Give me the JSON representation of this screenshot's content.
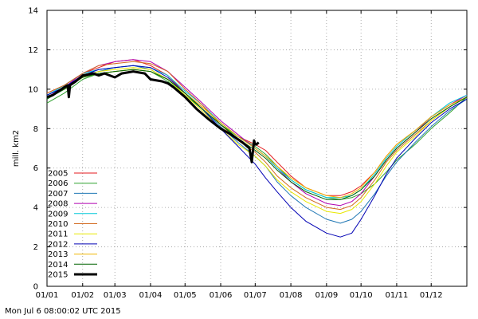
{
  "chart_data": {
    "type": "line",
    "ylabel": "mill. km2",
    "ylim": [
      0,
      14
    ],
    "yticks": [
      "0",
      "2",
      "4",
      "6",
      "8",
      "10",
      "12",
      "14"
    ],
    "xlim": [
      0,
      365
    ],
    "xticks": [
      {
        "label": "01/01",
        "day": 0
      },
      {
        "label": "01/02",
        "day": 31
      },
      {
        "label": "01/03",
        "day": 59
      },
      {
        "label": "01/04",
        "day": 90
      },
      {
        "label": "01/05",
        "day": 120
      },
      {
        "label": "01/06",
        "day": 151
      },
      {
        "label": "01/07",
        "day": 181
      },
      {
        "label": "01/08",
        "day": 212
      },
      {
        "label": "01/09",
        "day": 243
      },
      {
        "label": "01/10",
        "day": 273
      },
      {
        "label": "01/11",
        "day": 304
      },
      {
        "label": "01/12",
        "day": 334
      }
    ],
    "grid": true,
    "legend_position": "bottom-left",
    "series": [
      {
        "name": "2005",
        "color": "#e41a1c",
        "width": 1,
        "x": [
          0,
          15,
          31,
          45,
          59,
          75,
          90,
          105,
          120,
          135,
          151,
          166,
          181,
          190,
          200,
          212,
          225,
          243,
          255,
          265,
          273,
          285,
          295,
          304,
          320,
          334,
          350,
          365
        ],
        "values": [
          9.8,
          10.2,
          10.8,
          11.1,
          11.4,
          11.5,
          11.2,
          10.7,
          9.8,
          9.1,
          8.3,
          7.6,
          7.2,
          6.9,
          6.3,
          5.6,
          5.0,
          4.6,
          4.6,
          4.8,
          5.1,
          5.8,
          6.6,
          7.2,
          7.9,
          8.6,
          9.2,
          9.7
        ]
      },
      {
        "name": "2006",
        "color": "#2ca02c",
        "width": 1,
        "x": [
          0,
          15,
          31,
          45,
          59,
          75,
          90,
          105,
          120,
          135,
          151,
          166,
          181,
          190,
          200,
          212,
          225,
          243,
          255,
          265,
          273,
          285,
          295,
          304,
          320,
          334,
          350,
          365
        ],
        "values": [
          9.3,
          9.8,
          10.5,
          10.8,
          10.9,
          11.0,
          10.9,
          10.4,
          9.7,
          9.0,
          8.2,
          7.6,
          7.1,
          6.7,
          6.1,
          5.4,
          4.9,
          4.5,
          4.4,
          4.5,
          4.7,
          5.2,
          5.8,
          6.4,
          7.2,
          8.0,
          8.8,
          9.6
        ]
      },
      {
        "name": "2007",
        "color": "#1f77b4",
        "width": 1,
        "x": [
          0,
          15,
          31,
          45,
          59,
          75,
          90,
          105,
          120,
          135,
          151,
          166,
          181,
          190,
          200,
          212,
          225,
          243,
          255,
          265,
          273,
          285,
          295,
          304,
          320,
          334,
          350,
          365
        ],
        "values": [
          9.7,
          10.1,
          10.7,
          10.9,
          11.1,
          11.2,
          11.0,
          10.5,
          9.8,
          9.0,
          8.1,
          7.3,
          6.6,
          6.1,
          5.3,
          4.6,
          4.0,
          3.4,
          3.2,
          3.4,
          3.8,
          4.7,
          5.6,
          6.3,
          7.3,
          8.1,
          8.9,
          9.5
        ]
      },
      {
        "name": "2008",
        "color": "#b000b0",
        "width": 1,
        "x": [
          0,
          15,
          31,
          45,
          59,
          75,
          90,
          105,
          120,
          135,
          151,
          166,
          181,
          190,
          200,
          212,
          225,
          243,
          255,
          265,
          273,
          285,
          295,
          304,
          320,
          334,
          350,
          365
        ],
        "values": [
          9.6,
          10.1,
          10.8,
          11.2,
          11.4,
          11.5,
          11.4,
          10.9,
          10.1,
          9.3,
          8.4,
          7.7,
          7.0,
          6.6,
          6.0,
          5.3,
          4.7,
          4.2,
          4.1,
          4.3,
          4.7,
          5.6,
          6.4,
          7.0,
          7.8,
          8.6,
          9.2,
          9.7
        ]
      },
      {
        "name": "2009",
        "color": "#00c8d8",
        "width": 1,
        "x": [
          0,
          15,
          31,
          45,
          59,
          75,
          90,
          105,
          120,
          135,
          151,
          166,
          181,
          190,
          200,
          212,
          225,
          243,
          255,
          265,
          273,
          285,
          295,
          304,
          320,
          334,
          350,
          365
        ],
        "values": [
          9.7,
          10.2,
          10.8,
          11.0,
          11.1,
          11.2,
          11.1,
          10.7,
          9.9,
          9.2,
          8.3,
          7.6,
          7.0,
          6.6,
          6.0,
          5.4,
          4.9,
          4.5,
          4.5,
          4.6,
          4.9,
          5.7,
          6.5,
          7.1,
          7.9,
          8.6,
          9.3,
          9.7
        ]
      },
      {
        "name": "2010",
        "color": "#d2691e",
        "width": 1,
        "x": [
          0,
          15,
          31,
          45,
          59,
          75,
          90,
          105,
          120,
          135,
          151,
          166,
          181,
          190,
          200,
          212,
          225,
          243,
          255,
          265,
          273,
          285,
          295,
          304,
          320,
          334,
          350,
          365
        ],
        "values": [
          9.8,
          10.2,
          10.8,
          11.2,
          11.3,
          11.4,
          11.3,
          10.9,
          10.0,
          9.2,
          8.2,
          7.4,
          6.8,
          6.3,
          5.6,
          5.0,
          4.5,
          4.0,
          3.9,
          4.1,
          4.5,
          5.4,
          6.3,
          6.9,
          7.7,
          8.4,
          9.1,
          9.6
        ]
      },
      {
        "name": "2011",
        "color": "#e8e800",
        "width": 1,
        "x": [
          0,
          15,
          31,
          45,
          59,
          75,
          90,
          105,
          120,
          135,
          151,
          166,
          181,
          190,
          200,
          212,
          225,
          243,
          255,
          265,
          273,
          285,
          295,
          304,
          320,
          334,
          350,
          365
        ],
        "values": [
          9.6,
          10.0,
          10.6,
          10.9,
          11.0,
          11.1,
          11.0,
          10.5,
          9.7,
          8.9,
          8.0,
          7.2,
          6.6,
          6.1,
          5.4,
          4.8,
          4.3,
          3.8,
          3.7,
          3.9,
          4.3,
          5.2,
          6.1,
          6.8,
          7.6,
          8.4,
          9.1,
          9.6
        ]
      },
      {
        "name": "2012",
        "color": "#0000b4",
        "width": 1,
        "x": [
          0,
          15,
          31,
          45,
          59,
          75,
          90,
          105,
          120,
          135,
          151,
          166,
          181,
          190,
          200,
          212,
          225,
          243,
          255,
          265,
          273,
          285,
          295,
          304,
          320,
          334,
          350,
          365
        ],
        "values": [
          9.7,
          10.1,
          10.7,
          11.0,
          11.1,
          11.2,
          11.1,
          10.6,
          9.8,
          9.0,
          8.0,
          7.1,
          6.2,
          5.5,
          4.8,
          4.0,
          3.3,
          2.7,
          2.5,
          2.7,
          3.4,
          4.6,
          5.7,
          6.5,
          7.5,
          8.3,
          9.0,
          9.5
        ]
      },
      {
        "name": "2013",
        "color": "#f0b400",
        "width": 1,
        "x": [
          0,
          15,
          31,
          45,
          59,
          75,
          90,
          105,
          120,
          135,
          151,
          166,
          181,
          190,
          200,
          212,
          225,
          243,
          255,
          265,
          273,
          285,
          295,
          304,
          320,
          334,
          350,
          365
        ],
        "values": [
          9.6,
          10.0,
          10.6,
          10.8,
          10.9,
          11.0,
          10.9,
          10.5,
          9.8,
          9.1,
          8.3,
          7.6,
          7.0,
          6.6,
          6.1,
          5.5,
          5.0,
          4.6,
          4.5,
          4.7,
          5.0,
          5.8,
          6.6,
          7.2,
          7.9,
          8.6,
          9.2,
          9.6
        ]
      },
      {
        "name": "2014",
        "color": "#006400",
        "width": 1,
        "x": [
          0,
          15,
          31,
          45,
          59,
          75,
          90,
          105,
          120,
          135,
          151,
          166,
          181,
          190,
          200,
          212,
          225,
          243,
          255,
          265,
          273,
          285,
          295,
          304,
          320,
          334,
          350,
          365
        ],
        "values": [
          9.5,
          10.0,
          10.6,
          10.8,
          10.9,
          11.0,
          10.9,
          10.5,
          9.8,
          9.0,
          8.2,
          7.5,
          6.9,
          6.5,
          5.9,
          5.3,
          4.8,
          4.4,
          4.4,
          4.6,
          4.9,
          5.6,
          6.4,
          7.0,
          7.8,
          8.5,
          9.1,
          9.6
        ]
      },
      {
        "name": "2015",
        "color": "#000000",
        "width": 3,
        "x": [
          0,
          5,
          10,
          15,
          18,
          19,
          20,
          25,
          31,
          40,
          45,
          50,
          59,
          65,
          75,
          85,
          90,
          100,
          105,
          110,
          120,
          130,
          140,
          151,
          160,
          170,
          176,
          178,
          180,
          181,
          182,
          184
        ],
        "values": [
          9.6,
          9.7,
          9.9,
          10.1,
          10.2,
          9.6,
          10.2,
          10.4,
          10.7,
          10.8,
          10.7,
          10.8,
          10.6,
          10.8,
          10.9,
          10.8,
          10.5,
          10.4,
          10.3,
          10.1,
          9.6,
          9.0,
          8.5,
          8.0,
          7.7,
          7.3,
          7.0,
          6.3,
          7.4,
          7.2,
          7.2,
          7.3
        ]
      }
    ]
  },
  "timestamp": "Mon Jul  6 08:00:02 UTC 2015"
}
